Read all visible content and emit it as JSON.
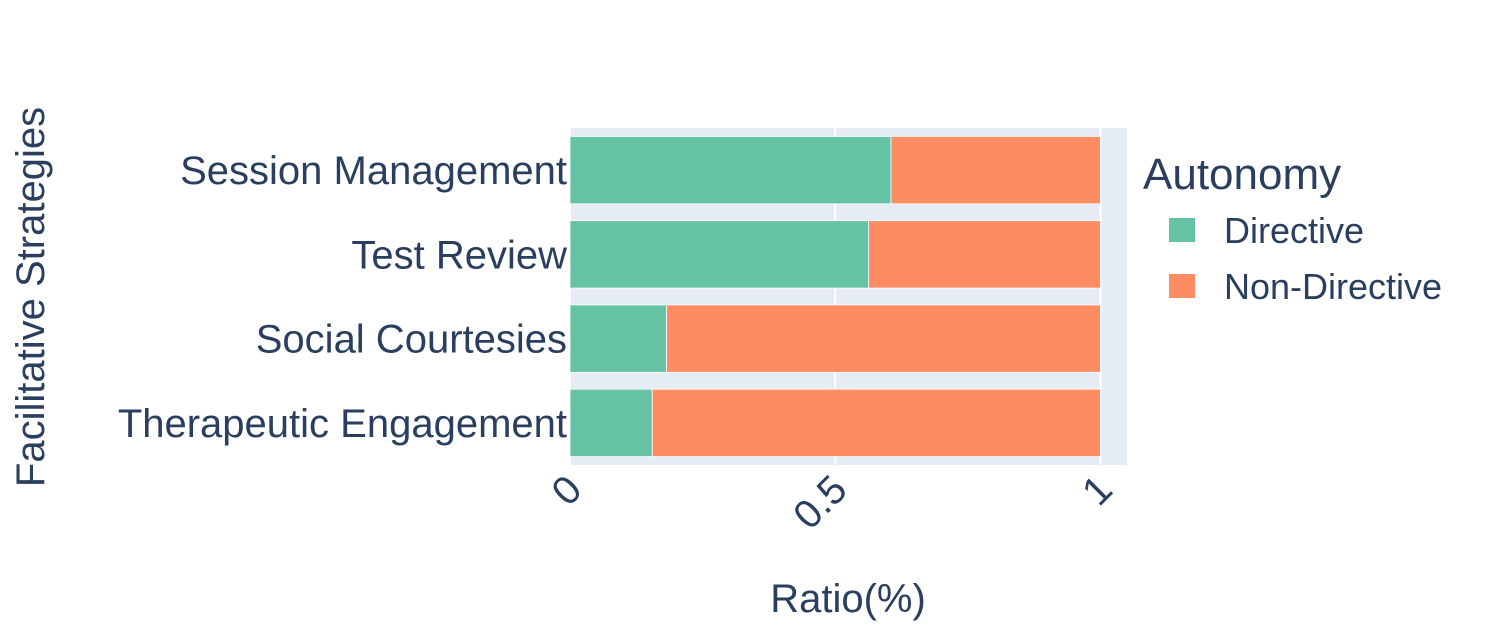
{
  "chart_data": {
    "type": "bar",
    "orientation": "horizontal",
    "stacked": true,
    "xlabel": "Ratio(%)",
    "ylabel": "Facilitative Strategies",
    "xlim": [
      0,
      1.05
    ],
    "xticks": [
      {
        "value": 0,
        "label": "0"
      },
      {
        "value": 0.5,
        "label": "0.5"
      },
      {
        "value": 1,
        "label": "1"
      }
    ],
    "grid": true,
    "categories": [
      "Session Management",
      "Test Review",
      "Social Courtesies",
      "Therapeutic Engagement"
    ],
    "legend": {
      "title": "Autonomy",
      "placement": "right"
    },
    "series": [
      {
        "name": "Directive",
        "color": "#66c2a5",
        "values": [
          0.605,
          0.563,
          0.182,
          0.155
        ]
      },
      {
        "name": "Non-Directive",
        "color": "#fc8d62",
        "values": [
          0.395,
          0.437,
          0.818,
          0.845
        ]
      }
    ]
  }
}
